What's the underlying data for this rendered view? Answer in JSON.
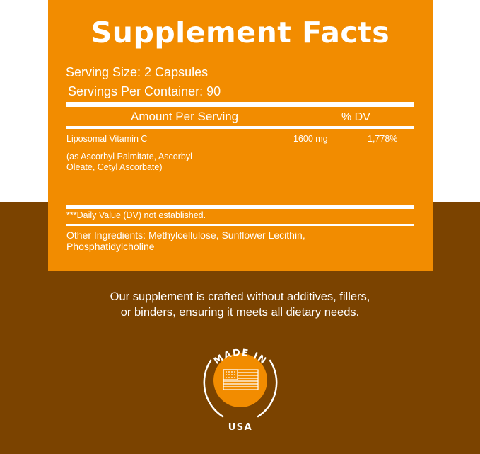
{
  "title": "Supplement Facts",
  "serving_size": "Serving Size: 2 Capsules",
  "servings_per_container": "Servings Per Container: 90",
  "table": {
    "header_amount": "Amount Per Serving",
    "header_dv": "% DV",
    "rows": [
      {
        "name": "Liposomal Vitamin C",
        "amount": "1600 mg",
        "dv": "1,778%",
        "note_line1": "(as Ascorbyl Palmitate, Ascorbyl",
        "note_line2": "Oleate, Cetyl Ascorbate)"
      }
    ]
  },
  "footnote": "***Daily Value (DV) not established.",
  "other_ingredients_line1": "Other Ingredients: Methylcellulose, Sunflower Lecithin,",
  "other_ingredients_line2": "Phosphatidylcholine",
  "blurb_line1": "Our supplement is crafted without additives, fillers,",
  "blurb_line2": "or binders, ensuring it meets all dietary needs.",
  "badge": {
    "top_text": "MADE IN",
    "bottom_text": "USA",
    "icon": "us-flag-icon"
  },
  "colors": {
    "orange": "#f28c00",
    "brown": "#7b4300",
    "white": "#ffffff"
  }
}
